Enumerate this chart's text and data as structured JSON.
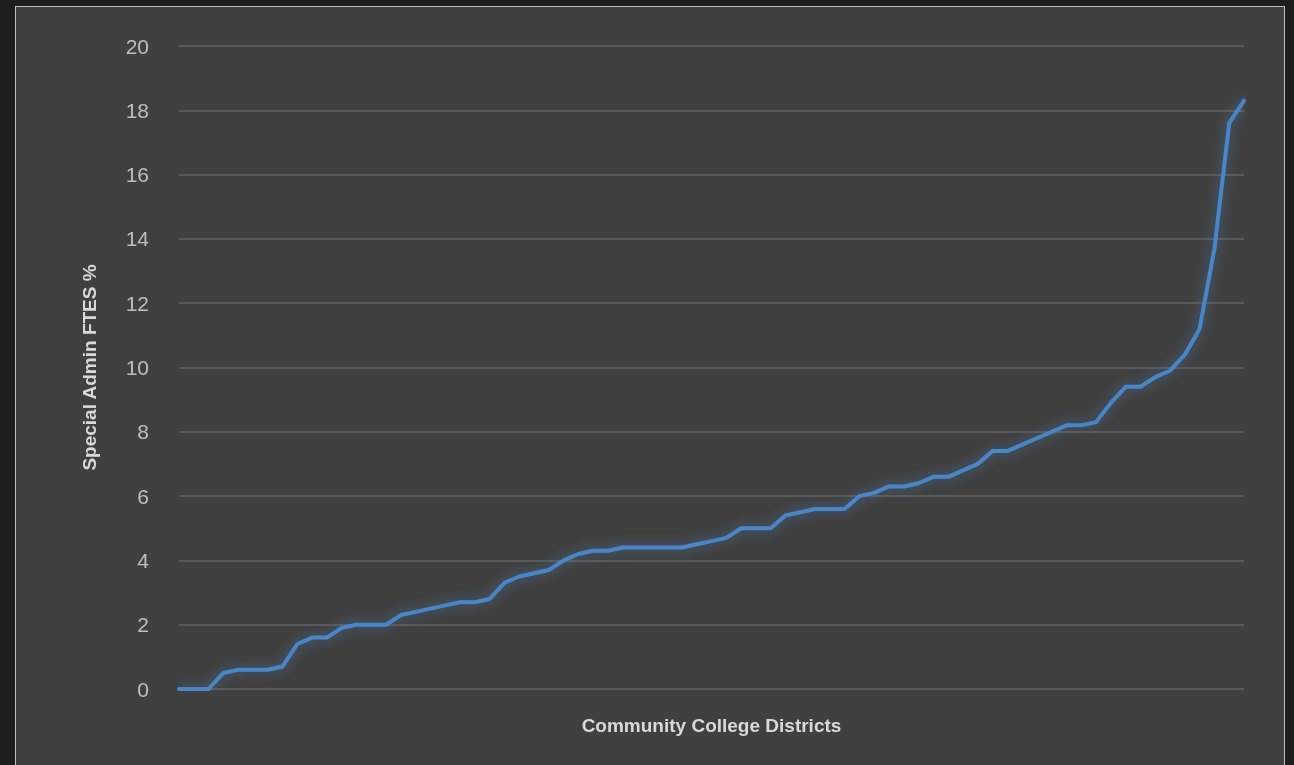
{
  "chart_data": {
    "type": "line",
    "xlabel": "Community College Districts",
    "ylabel": "Special Admin FTES %",
    "categories": [
      null,
      null,
      null,
      null,
      null,
      null,
      null,
      null,
      null,
      null,
      null,
      null,
      null,
      null,
      null,
      null,
      null,
      null,
      null,
      null,
      null,
      null,
      null,
      null,
      null,
      null,
      null,
      null,
      null,
      null,
      null,
      null,
      null,
      null,
      null,
      null,
      null,
      null,
      null,
      null,
      null,
      null,
      null,
      null,
      null,
      null,
      null,
      null,
      null,
      null,
      null,
      null,
      null,
      null,
      null,
      null,
      null,
      null,
      null,
      null,
      null,
      null,
      null,
      null,
      null,
      null,
      null,
      null,
      null,
      null,
      null,
      null,
      null
    ],
    "series": [
      {
        "color": "#4a86c8",
        "values": [
          0,
          0,
          0,
          0.5,
          0.6,
          0.6,
          0.6,
          0.7,
          1.4,
          1.6,
          1.6,
          1.9,
          2.0,
          2.0,
          2.0,
          2.3,
          2.4,
          2.5,
          2.6,
          2.7,
          2.7,
          2.8,
          3.3,
          3.5,
          3.6,
          3.7,
          4.0,
          4.2,
          4.3,
          4.3,
          4.4,
          4.4,
          4.4,
          4.4,
          4.4,
          4.5,
          4.6,
          4.7,
          5.0,
          5.0,
          5.0,
          5.4,
          5.5,
          5.6,
          5.6,
          5.6,
          6.0,
          6.1,
          6.3,
          6.3,
          6.4,
          6.6,
          6.6,
          6.8,
          7.0,
          7.4,
          7.4,
          7.6,
          7.8,
          8.0,
          8.2,
          8.2,
          8.3,
          8.9,
          9.4,
          9.4,
          9.7,
          9.9,
          10.4,
          11.2,
          13.7,
          17.6,
          18.3
        ]
      }
    ],
    "ylim": [
      0,
      20
    ],
    "yticks": [
      0,
      2,
      4,
      6,
      8,
      10,
      12,
      14,
      16,
      18,
      20
    ],
    "grid": "y",
    "marker": "none",
    "line_style": "solid",
    "tick_labels": "y"
  }
}
